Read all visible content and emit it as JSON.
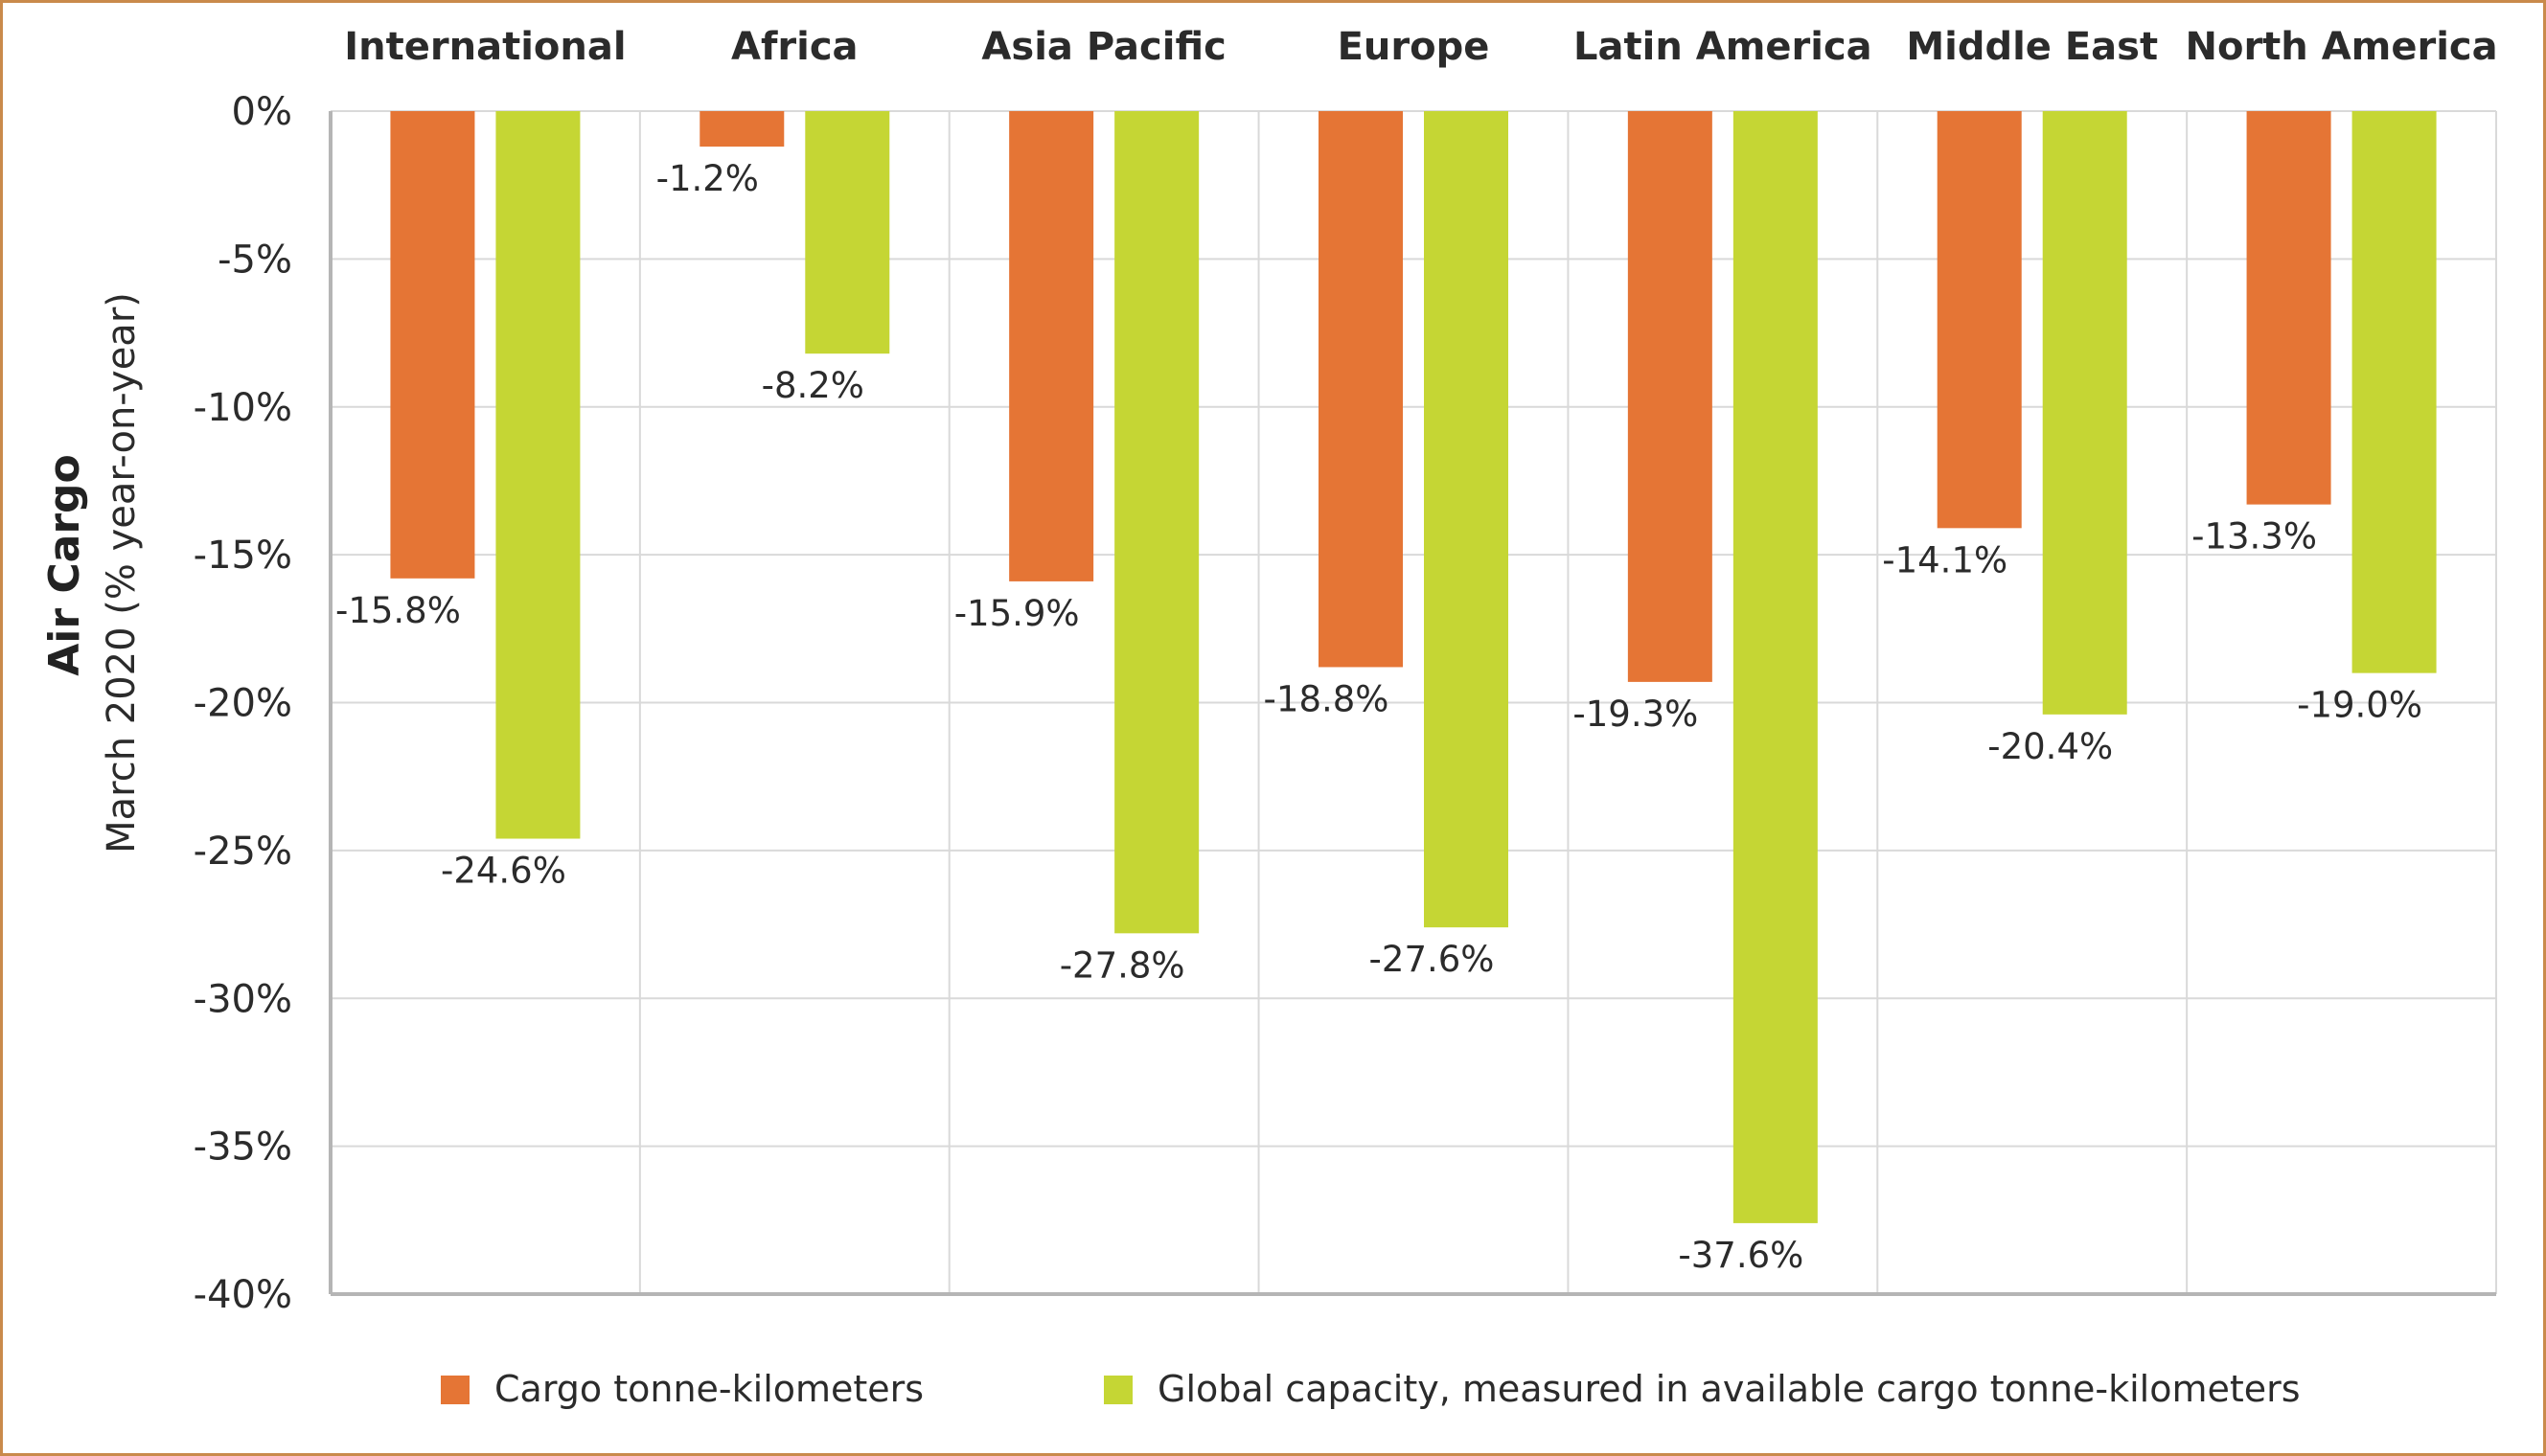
{
  "chart_data": {
    "type": "bar",
    "categories": [
      "International",
      "Africa",
      "Asia Pacific",
      "Europe",
      "Latin America",
      "Middle East",
      "North America"
    ],
    "series": [
      {
        "name": "Cargo tonne-kilometers",
        "color": "#e57535",
        "values": [
          -15.8,
          -1.2,
          -15.9,
          -18.8,
          -19.3,
          -14.1,
          -13.3
        ],
        "labels": [
          "-15.8%",
          "-1.2%",
          "-15.9%",
          "-18.8%",
          "-19.3%",
          "-14.1%",
          "-13.3%"
        ]
      },
      {
        "name": "Global capacity, measured in available cargo tonne-kilometers",
        "color": "#c5d634",
        "values": [
          -24.6,
          -8.2,
          -27.8,
          -27.6,
          -37.6,
          -20.4,
          -19.0
        ],
        "labels": [
          "-24.6%",
          "-8.2%",
          "-27.8%",
          "-27.6%",
          "-37.6%",
          "-20.4%",
          "-19.0%"
        ]
      }
    ],
    "ylabel": "Air Cargo",
    "ylabel_sub": "March 2020 (% year-on-year)",
    "ylim": [
      -40,
      0
    ],
    "yticks": [
      0,
      -5,
      -10,
      -15,
      -20,
      -25,
      -30,
      -35,
      -40
    ],
    "ytick_labels": [
      "0%",
      "-5%",
      "-10%",
      "-15%",
      "-20%",
      "-25%",
      "-30%",
      "-35%",
      "-40%"
    ],
    "category_position": "top",
    "grid": true,
    "legend_position": "bottom",
    "axis_color": "#b5b5b5",
    "grid_color": "#d9d9d9",
    "frame_color": "#c98a4b"
  }
}
